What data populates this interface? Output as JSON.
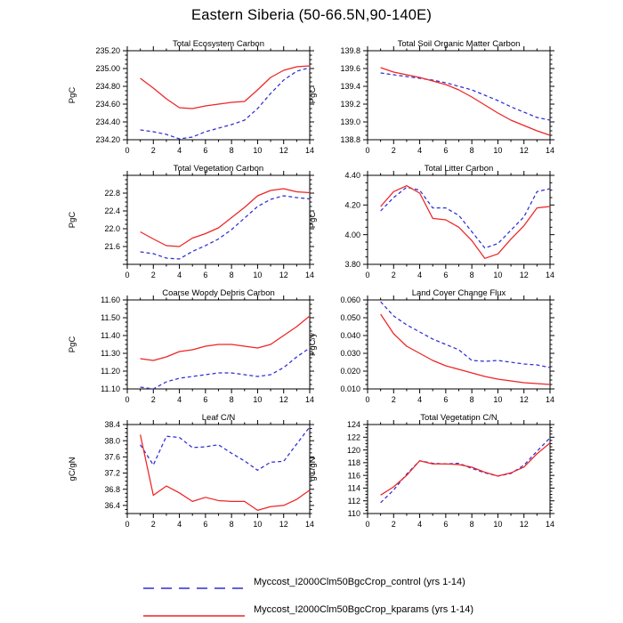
{
  "page": {
    "title": "Eastern Siberia (50-66.5N,90-140E)",
    "background": "#ffffff"
  },
  "styles": {
    "control_color": "#2e2ed2",
    "kparams_color": "#ee2424",
    "axis_color": "#000000",
    "text_color": "#000000"
  },
  "legend": [
    {
      "name": "control",
      "label": "Myccost_I2000Clm50BgcCrop_control (yrs 1-14)",
      "dashed": true
    },
    {
      "name": "kparams",
      "label": "Myccost_I2000Clm50BgcCrop_kparams (yrs 1-14)",
      "dashed": false
    }
  ],
  "chart_data": [
    {
      "type": "line",
      "slug": "total-ecosystem-carbon",
      "title": "Total Ecosystem Carbon",
      "ylabel": "PgC",
      "ylim": [
        234.2,
        235.2
      ],
      "ytick_vals": [
        234.2,
        234.4,
        234.6,
        234.8,
        235.0,
        235.2
      ],
      "ytick_labels": [
        "234.20",
        "234.40",
        "234.60",
        "234.80",
        "235.00",
        "235.20"
      ],
      "xlim": [
        0,
        14
      ],
      "xtick_vals": [
        0,
        2,
        4,
        6,
        8,
        10,
        12,
        14
      ],
      "x": [
        1,
        2,
        3,
        4,
        5,
        6,
        7,
        8,
        9,
        10,
        11,
        12,
        13,
        14
      ],
      "series": [
        {
          "name": "control",
          "values": [
            234.31,
            234.29,
            234.26,
            234.21,
            234.23,
            234.29,
            234.33,
            234.37,
            234.42,
            234.55,
            234.72,
            234.87,
            234.97,
            235.01
          ]
        },
        {
          "name": "kparams",
          "values": [
            234.89,
            234.78,
            234.66,
            234.56,
            234.55,
            234.58,
            234.6,
            234.62,
            234.63,
            234.76,
            234.9,
            234.98,
            235.02,
            235.03
          ]
        }
      ]
    },
    {
      "type": "line",
      "slug": "total-soil-organic-matter-carbon",
      "title": "Total Soil Organic Matter Carbon",
      "ylabel": "PgC",
      "ylim": [
        138.8,
        139.8
      ],
      "ytick_vals": [
        138.8,
        139.0,
        139.2,
        139.4,
        139.6,
        139.8
      ],
      "ytick_labels": [
        "138.8",
        "139.0",
        "139.2",
        "139.4",
        "139.6",
        "139.8"
      ],
      "xlim": [
        0,
        14
      ],
      "xtick_vals": [
        0,
        2,
        4,
        6,
        8,
        10,
        12,
        14
      ],
      "x": [
        1,
        2,
        3,
        4,
        5,
        6,
        7,
        8,
        9,
        10,
        11,
        12,
        13,
        14
      ],
      "series": [
        {
          "name": "control",
          "values": [
            139.55,
            139.53,
            139.51,
            139.49,
            139.47,
            139.44,
            139.4,
            139.36,
            139.3,
            139.24,
            139.17,
            139.11,
            139.05,
            139.02
          ]
        },
        {
          "name": "kparams",
          "values": [
            139.61,
            139.56,
            139.53,
            139.5,
            139.46,
            139.42,
            139.36,
            139.28,
            139.19,
            139.1,
            139.02,
            138.96,
            138.9,
            138.85
          ]
        }
      ]
    },
    {
      "type": "line",
      "slug": "total-vegetation-carbon",
      "title": "Total Vegetation Carbon",
      "ylabel": "PgC",
      "ylim": [
        21.2,
        23.2
      ],
      "ytick_vals": [
        21.2,
        21.6,
        22.0,
        22.4,
        22.8,
        23.2
      ],
      "ytick_labels": [
        "",
        "21.6",
        "22.0",
        "22.4",
        "22.8",
        ""
      ],
      "xlim": [
        0,
        14
      ],
      "xtick_vals": [
        0,
        2,
        4,
        6,
        8,
        10,
        12,
        14
      ],
      "x": [
        1,
        2,
        3,
        4,
        5,
        6,
        7,
        8,
        9,
        10,
        11,
        12,
        13,
        14
      ],
      "series": [
        {
          "name": "control",
          "values": [
            21.48,
            21.44,
            21.34,
            21.32,
            21.49,
            21.62,
            21.77,
            21.98,
            22.24,
            22.5,
            22.66,
            22.74,
            22.7,
            22.67
          ]
        },
        {
          "name": "kparams",
          "values": [
            21.93,
            21.77,
            21.62,
            21.6,
            21.79,
            21.89,
            22.02,
            22.25,
            22.48,
            22.74,
            22.86,
            22.9,
            22.83,
            22.81
          ]
        }
      ]
    },
    {
      "type": "line",
      "slug": "total-litter-carbon",
      "title": "Total Litter Carbon",
      "ylabel": "PgC",
      "ylim": [
        3.8,
        4.4
      ],
      "ytick_vals": [
        3.8,
        4.0,
        4.2,
        4.4
      ],
      "ytick_labels": [
        "3.80",
        "4.00",
        "4.20",
        "4.40"
      ],
      "xlim": [
        0,
        14
      ],
      "xtick_vals": [
        0,
        2,
        4,
        6,
        8,
        10,
        12,
        14
      ],
      "x": [
        1,
        2,
        3,
        4,
        5,
        6,
        7,
        8,
        9,
        10,
        11,
        12,
        13,
        14
      ],
      "series": [
        {
          "name": "control",
          "values": [
            4.16,
            4.25,
            4.32,
            4.3,
            4.18,
            4.18,
            4.13,
            4.02,
            3.91,
            3.94,
            4.03,
            4.12,
            4.29,
            4.31
          ]
        },
        {
          "name": "kparams",
          "values": [
            4.19,
            4.29,
            4.33,
            4.28,
            4.11,
            4.1,
            4.05,
            3.96,
            3.84,
            3.87,
            3.97,
            4.06,
            4.18,
            4.19
          ]
        }
      ]
    },
    {
      "type": "line",
      "slug": "coarse-woody-debris-carbon",
      "title": "Coarse Woody Debris Carbon",
      "ylabel": "PgC",
      "ylim": [
        11.1,
        11.6
      ],
      "ytick_vals": [
        11.1,
        11.2,
        11.3,
        11.4,
        11.5,
        11.6
      ],
      "ytick_labels": [
        "11.10",
        "11.20",
        "11.30",
        "11.40",
        "11.50",
        "11.60"
      ],
      "xlim": [
        0,
        14
      ],
      "xtick_vals": [
        0,
        2,
        4,
        6,
        8,
        10,
        12,
        14
      ],
      "x": [
        1,
        2,
        3,
        4,
        5,
        6,
        7,
        8,
        9,
        10,
        11,
        12,
        13,
        14
      ],
      "series": [
        {
          "name": "control",
          "values": [
            11.11,
            11.1,
            11.14,
            11.16,
            11.17,
            11.18,
            11.19,
            11.19,
            11.18,
            11.17,
            11.18,
            11.22,
            11.28,
            11.33
          ]
        },
        {
          "name": "kparams",
          "values": [
            11.27,
            11.26,
            11.28,
            11.31,
            11.32,
            11.34,
            11.35,
            11.35,
            11.34,
            11.33,
            11.35,
            11.4,
            11.45,
            11.51
          ]
        }
      ]
    },
    {
      "type": "line",
      "slug": "land-cover-change-flux",
      "title": "Land Cover Change Flux",
      "ylabel": "PgC/y",
      "ylim": [
        0.01,
        0.06
      ],
      "ytick_vals": [
        0.01,
        0.02,
        0.03,
        0.04,
        0.05,
        0.06
      ],
      "ytick_labels": [
        "0.010",
        "0.020",
        "0.030",
        "0.040",
        "0.050",
        "0.060"
      ],
      "xlim": [
        0,
        14
      ],
      "xtick_vals": [
        0,
        2,
        4,
        6,
        8,
        10,
        12,
        14
      ],
      "x": [
        1,
        2,
        3,
        4,
        5,
        6,
        7,
        8,
        9,
        10,
        11,
        12,
        13,
        14
      ],
      "series": [
        {
          "name": "control",
          "values": [
            0.059,
            0.051,
            0.046,
            0.042,
            0.038,
            0.035,
            0.032,
            0.026,
            0.0255,
            0.026,
            0.025,
            0.024,
            0.0235,
            0.022
          ]
        },
        {
          "name": "kparams",
          "values": [
            0.052,
            0.041,
            0.034,
            0.03,
            0.026,
            0.023,
            0.021,
            0.019,
            0.017,
            0.0155,
            0.0145,
            0.0135,
            0.013,
            0.0125
          ]
        }
      ]
    },
    {
      "type": "line",
      "slug": "leaf-cn",
      "title": "Leaf C/N",
      "ylabel": "gC/gN",
      "ylim": [
        36.2,
        38.4
      ],
      "ytick_vals": [
        36.4,
        36.8,
        37.2,
        37.6,
        38.0,
        38.4
      ],
      "ytick_labels": [
        "36.4",
        "36.8",
        "37.2",
        "37.6",
        "38.0",
        "38.4"
      ],
      "xlim": [
        0,
        14
      ],
      "xtick_vals": [
        0,
        2,
        4,
        6,
        8,
        10,
        12,
        14
      ],
      "x": [
        1,
        2,
        3,
        4,
        5,
        6,
        7,
        8,
        9,
        10,
        11,
        12,
        13,
        14
      ],
      "series": [
        {
          "name": "control",
          "values": [
            37.9,
            37.4,
            38.11,
            38.08,
            37.83,
            37.85,
            37.9,
            37.69,
            37.5,
            37.27,
            37.47,
            37.49,
            37.92,
            38.34
          ]
        },
        {
          "name": "kparams",
          "values": [
            38.15,
            36.65,
            36.88,
            36.71,
            36.5,
            36.6,
            36.52,
            36.5,
            36.5,
            36.28,
            36.37,
            36.4,
            36.55,
            36.78
          ]
        }
      ]
    },
    {
      "type": "line",
      "slug": "total-vegetation-cn",
      "title": "Total Vegetation C/N",
      "ylabel": "gC/gN",
      "ylim": [
        110,
        124
      ],
      "ytick_vals": [
        110,
        112,
        114,
        116,
        118,
        120,
        122,
        124
      ],
      "ytick_labels": [
        "110",
        "112",
        "114",
        "116",
        "118",
        "120",
        "122",
        "124"
      ],
      "xlim": [
        0,
        14
      ],
      "xtick_vals": [
        0,
        2,
        4,
        6,
        8,
        10,
        12,
        14
      ],
      "x": [
        1,
        2,
        3,
        4,
        5,
        6,
        7,
        8,
        9,
        10,
        11,
        12,
        13,
        14
      ],
      "series": [
        {
          "name": "control",
          "values": [
            111.7,
            113.7,
            116.2,
            118.3,
            117.9,
            117.8,
            117.9,
            117.1,
            116.4,
            115.9,
            116.3,
            117.6,
            119.8,
            121.9
          ]
        },
        {
          "name": "kparams",
          "values": [
            112.9,
            114.2,
            116.0,
            118.3,
            117.8,
            117.8,
            117.7,
            117.3,
            116.5,
            115.9,
            116.4,
            117.3,
            119.4,
            121.1
          ]
        }
      ]
    }
  ]
}
